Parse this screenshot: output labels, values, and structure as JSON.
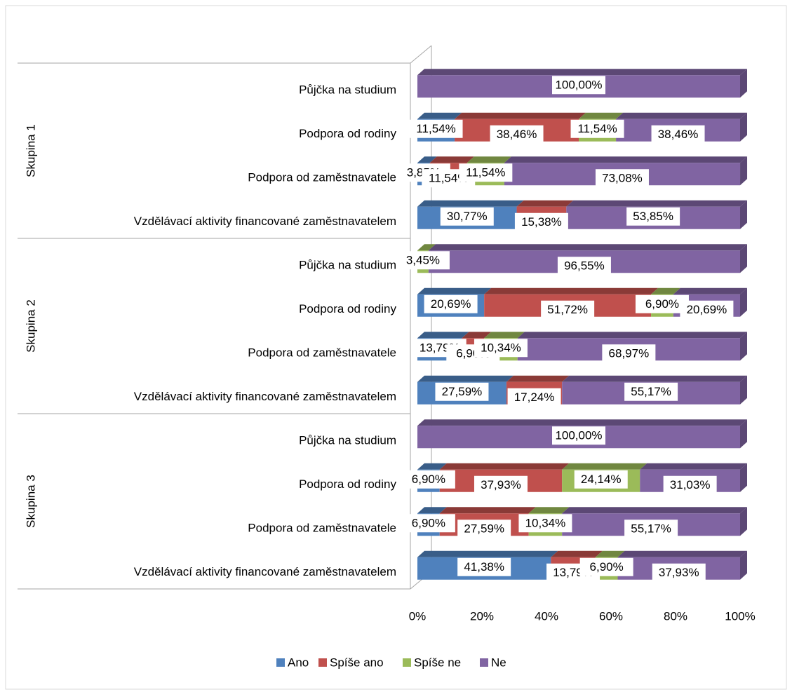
{
  "chart_data": {
    "type": "bar_stacked_horizontal",
    "groups": [
      {
        "name": "Skupina 1",
        "categories": [
          "Půjčka na studium",
          "Podpora od rodiny",
          "Podpora od zaměstnavatele",
          "Vzdělávací aktivity financované zaměstnavatelem"
        ]
      },
      {
        "name": "Skupina 2",
        "categories": [
          "Půjčka na studium",
          "Podpora od rodiny",
          "Podpora od zaměstnavatele",
          "Vzdělávací aktivity financované zaměstnavatelem"
        ]
      },
      {
        "name": "Skupina 3",
        "categories": [
          "Půjčka na studium",
          "Podpora od rodiny",
          "Podpora od zaměstnavatele",
          "Vzdělávací aktivity financované zaměstnavatelem"
        ]
      }
    ],
    "series": [
      {
        "name": "Ano",
        "color": "#4f81bd",
        "values": [
          0,
          11.54,
          3.85,
          30.77,
          0,
          20.69,
          13.79,
          27.59,
          0,
          6.9,
          6.9,
          41.38
        ],
        "value_labels": [
          null,
          "11,54%",
          "3,85%",
          "30,77%",
          null,
          "20,69%",
          "13,79%",
          "27,59%",
          null,
          "6,90%",
          "6,90%",
          "41,38%"
        ]
      },
      {
        "name": "Spíše ano",
        "color": "#c0504d",
        "values": [
          0,
          38.46,
          11.54,
          15.38,
          0,
          51.72,
          6.9,
          17.24,
          0,
          37.93,
          27.59,
          13.79
        ],
        "value_labels": [
          null,
          "38,46%",
          "11,54%",
          "15,38%",
          null,
          "51,72%",
          "6,90%",
          "17,24%",
          null,
          "37,93%",
          "27,59%",
          "13,79%"
        ]
      },
      {
        "name": "Spíše ne",
        "color": "#9bbb59",
        "values": [
          0,
          11.54,
          11.54,
          0,
          3.45,
          6.9,
          10.34,
          0,
          0,
          24.14,
          10.34,
          6.9
        ],
        "value_labels": [
          null,
          "11,54%",
          "11,54%",
          null,
          "3,45%",
          "6,90%",
          "10,34%",
          null,
          null,
          "24,14%",
          "10,34%",
          "6,90%"
        ]
      },
      {
        "name": "Ne",
        "color": "#8064a2",
        "values": [
          100,
          38.46,
          73.08,
          53.85,
          96.55,
          20.69,
          68.97,
          55.17,
          100,
          31.03,
          55.17,
          37.93
        ],
        "value_labels": [
          "100,00%",
          "38,46%",
          "73,08%",
          "53,85%",
          "96,55%",
          "20,69%",
          "68,97%",
          "55,17%",
          "100,00%",
          "31,03%",
          "55,17%",
          "37,93%"
        ]
      }
    ],
    "xlim": [
      0,
      100
    ],
    "xticks": [
      {
        "value": 0,
        "label": "0%"
      },
      {
        "value": 20,
        "label": "20%"
      },
      {
        "value": 40,
        "label": "40%"
      },
      {
        "value": 60,
        "label": "60%"
      },
      {
        "value": 80,
        "label": "80%"
      },
      {
        "value": 100,
        "label": "100%"
      }
    ],
    "legend": "bottom"
  }
}
